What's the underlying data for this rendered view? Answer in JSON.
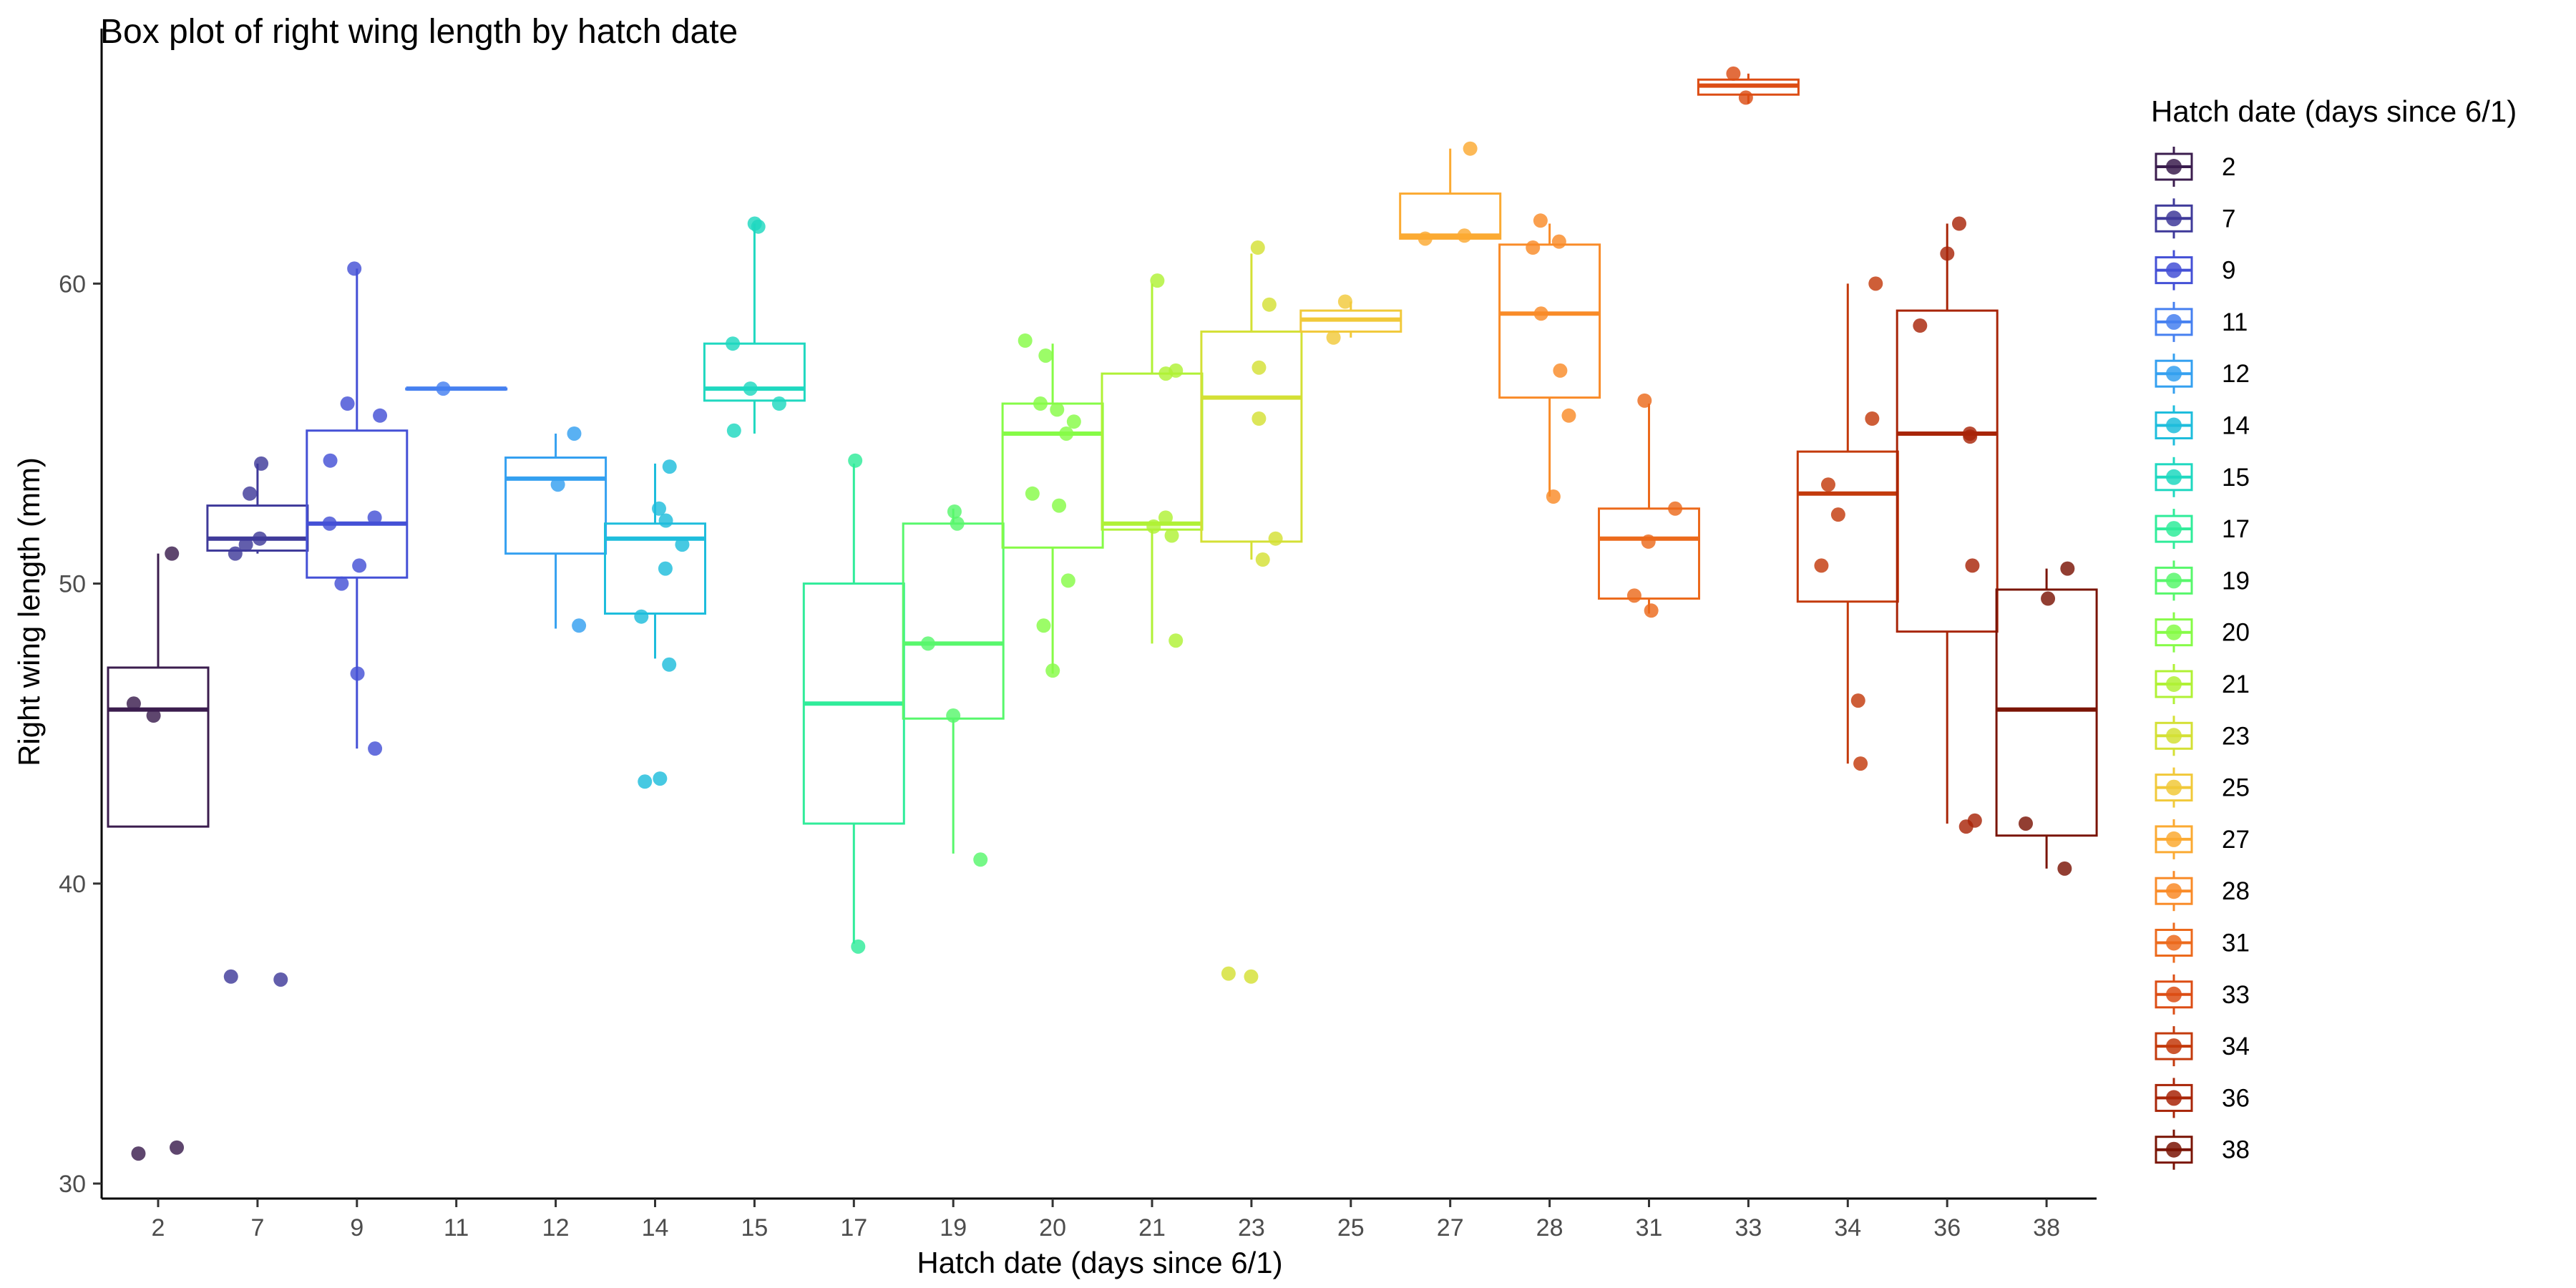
{
  "chart_data": {
    "type": "box",
    "title": "Box plot of right wing length by hatch date",
    "xlabel": "Hatch date (days since 6/1)",
    "ylabel": "Right wing length (mm)",
    "ylim": [
      29.5,
      68.5
    ],
    "yticks": [
      30,
      40,
      50,
      60
    ],
    "legend": {
      "title": "Hatch date (days since 6/1)",
      "position": "right"
    },
    "groups": [
      {
        "name": "2",
        "color": "#3b1d4e",
        "box": {
          "min": 41.9,
          "q1": 41.9,
          "median": 45.8,
          "q3": 47.2,
          "max": 51.0
        },
        "points": [
          51.0,
          46.0,
          45.6,
          31.2,
          31.0
        ]
      },
      {
        "name": "7",
        "color": "#3f3a9a",
        "box": {
          "min": 51.0,
          "q1": 51.1,
          "median": 51.5,
          "q3": 52.6,
          "max": 54.0
        },
        "points": [
          54.0,
          53.0,
          51.3,
          51.5,
          51.0,
          36.9,
          36.8
        ]
      },
      {
        "name": "9",
        "color": "#4450d6",
        "box": {
          "min": 44.5,
          "q1": 50.2,
          "median": 52.0,
          "q3": 55.1,
          "max": 60.5
        },
        "points": [
          60.5,
          56.0,
          55.6,
          54.1,
          52.2,
          52.0,
          50.6,
          50.0,
          47.0,
          44.5
        ]
      },
      {
        "name": "11",
        "color": "#4680f0",
        "box": {
          "min": 56.5,
          "q1": 56.5,
          "median": 56.5,
          "q3": 56.5,
          "max": 56.5
        },
        "points": [
          56.5
        ]
      },
      {
        "name": "12",
        "color": "#34a0f0",
        "box": {
          "min": 48.5,
          "q1": 51.0,
          "median": 53.5,
          "q3": 54.2,
          "max": 55.0
        },
        "points": [
          55.0,
          53.3,
          48.6
        ]
      },
      {
        "name": "14",
        "color": "#1ebddc",
        "box": {
          "min": 47.5,
          "q1": 49.0,
          "median": 51.5,
          "q3": 52.0,
          "max": 54.0
        },
        "points": [
          53.9,
          52.5,
          52.1,
          51.3,
          50.5,
          48.9,
          47.3,
          43.5,
          43.4
        ]
      },
      {
        "name": "15",
        "color": "#1fd8c0",
        "box": {
          "min": 55.0,
          "q1": 56.1,
          "median": 56.5,
          "q3": 58.0,
          "max": 62.0
        },
        "points": [
          62.0,
          61.9,
          58.0,
          56.5,
          56.0,
          55.1
        ]
      },
      {
        "name": "17",
        "color": "#30ec9a",
        "box": {
          "min": 38.0,
          "q1": 42.0,
          "median": 46.0,
          "q3": 50.0,
          "max": 54.0
        },
        "points": [
          54.1,
          37.9
        ]
      },
      {
        "name": "19",
        "color": "#58f76c",
        "box": {
          "min": 41.0,
          "q1": 45.5,
          "median": 48.0,
          "q3": 52.0,
          "max": 52.5
        },
        "points": [
          52.4,
          52.0,
          48.0,
          45.6,
          40.8
        ]
      },
      {
        "name": "20",
        "color": "#86fb47",
        "box": {
          "min": 47.0,
          "q1": 51.2,
          "median": 55.0,
          "q3": 56.0,
          "max": 58.0
        },
        "points": [
          58.1,
          57.6,
          56.0,
          55.8,
          55.4,
          55.0,
          53.0,
          52.6,
          50.1,
          48.6,
          47.1
        ]
      },
      {
        "name": "21",
        "color": "#b0f136",
        "box": {
          "min": 48.0,
          "q1": 51.8,
          "median": 52.0,
          "q3": 57.0,
          "max": 60.0
        },
        "points": [
          60.1,
          57.1,
          57.0,
          52.2,
          51.9,
          51.6,
          48.1
        ]
      },
      {
        "name": "23",
        "color": "#d4e035",
        "box": {
          "min": 50.8,
          "q1": 51.4,
          "median": 56.2,
          "q3": 58.4,
          "max": 61.0
        },
        "points": [
          61.2,
          59.3,
          57.2,
          55.5,
          51.5,
          50.8,
          37.0,
          36.9
        ]
      },
      {
        "name": "25",
        "color": "#f1c93a",
        "box": {
          "min": 58.2,
          "q1": 58.4,
          "median": 58.8,
          "q3": 59.1,
          "max": 59.4
        },
        "points": [
          59.4,
          58.2
        ]
      },
      {
        "name": "27",
        "color": "#fbaa32",
        "box": {
          "min": 61.5,
          "q1": 61.5,
          "median": 61.6,
          "q3": 63.0,
          "max": 64.5
        },
        "points": [
          64.5,
          61.6,
          61.5
        ]
      },
      {
        "name": "28",
        "color": "#f98b28",
        "box": {
          "min": 52.9,
          "q1": 56.2,
          "median": 59.0,
          "q3": 61.3,
          "max": 62.0
        },
        "points": [
          62.1,
          61.4,
          61.2,
          59.0,
          57.1,
          55.6,
          52.9
        ]
      },
      {
        "name": "31",
        "color": "#ec6a1c",
        "box": {
          "min": 49.0,
          "q1": 49.5,
          "median": 51.5,
          "q3": 52.5,
          "max": 56.0
        },
        "points": [
          56.1,
          52.5,
          51.4,
          49.6,
          49.1
        ]
      },
      {
        "name": "33",
        "color": "#dc4d14",
        "box": {
          "min": 66.0,
          "q1": 66.3,
          "median": 66.6,
          "q3": 66.8,
          "max": 67.0
        },
        "points": [
          67.0,
          66.2
        ]
      },
      {
        "name": "34",
        "color": "#c33a0c",
        "box": {
          "min": 44.0,
          "q1": 49.4,
          "median": 53.0,
          "q3": 54.4,
          "max": 60.0
        },
        "points": [
          60.0,
          55.5,
          53.3,
          52.3,
          50.6,
          46.1,
          44.0
        ]
      },
      {
        "name": "36",
        "color": "#a82508",
        "box": {
          "min": 42.0,
          "q1": 48.4,
          "median": 55.0,
          "q3": 59.1,
          "max": 62.0
        },
        "points": [
          62.0,
          61.0,
          58.6,
          55.0,
          54.9,
          50.6,
          42.1,
          41.9
        ]
      },
      {
        "name": "38",
        "color": "#7a1405",
        "box": {
          "min": 40.5,
          "q1": 41.6,
          "median": 45.8,
          "q3": 49.8,
          "max": 50.5
        },
        "points": [
          50.5,
          49.5,
          42.0,
          40.5
        ]
      }
    ]
  }
}
